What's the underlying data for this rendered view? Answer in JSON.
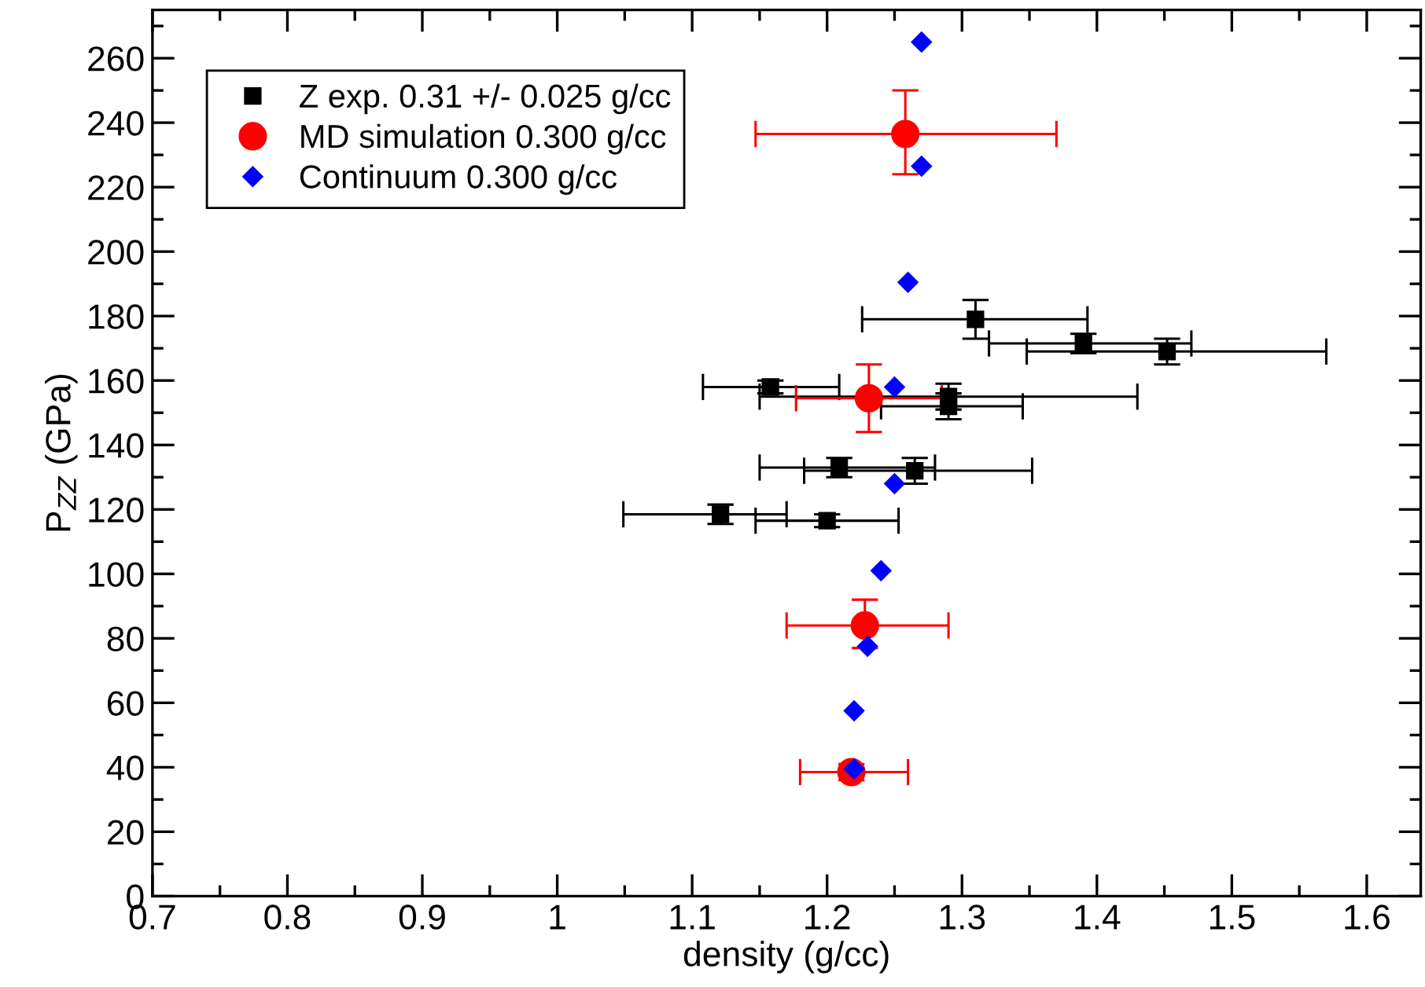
{
  "chart_data": {
    "type": "scatter",
    "xlabel": "density (g/cc)",
    "ylabel": "P$_{ZZ}$ (GPa)",
    "xlim": [
      0.7,
      1.64
    ],
    "ylim": [
      0,
      275
    ],
    "xticks": [
      0.7,
      0.8,
      0.9,
      {
        "value": 1.0,
        "label": "1"
      },
      1.1,
      1.2,
      1.3,
      1.4,
      1.5,
      1.6
    ],
    "yticks": [
      0,
      20,
      40,
      60,
      80,
      100,
      120,
      140,
      160,
      180,
      200,
      220,
      240,
      260
    ],
    "grid": false,
    "legend": "top left",
    "series": [
      {
        "name": "Z exp. 0.31 +/- 0.025 g/cc",
        "color": "#000000",
        "marker": "square",
        "x": [
          1.31,
          1.39,
          1.452,
          1.158,
          1.29,
          1.29,
          1.209,
          1.265,
          1.121,
          1.2
        ],
        "values": [
          179,
          171.5,
          169,
          158,
          155,
          152,
          133,
          132,
          118.5,
          116.5
        ],
        "errors": [
          6,
          3,
          4,
          2,
          4,
          4,
          3,
          4,
          3,
          2
        ],
        "xerrors": [
          [
            1.226,
            1.393
          ],
          [
            1.32,
            1.47
          ],
          [
            1.348,
            1.57
          ],
          [
            1.108,
            1.209
          ],
          [
            1.15,
            1.43
          ],
          [
            1.24,
            1.345
          ],
          [
            1.15,
            1.28
          ],
          [
            1.183,
            1.352
          ],
          [
            1.049,
            1.17
          ],
          [
            1.147,
            1.253
          ]
        ]
      },
      {
        "name": "MD simulation 0.300 g/cc",
        "color": "#ff0000",
        "marker": "circle",
        "x": [
          1.258,
          1.231,
          1.228,
          1.218
        ],
        "values": [
          236.5,
          154.5,
          84,
          38.5
        ],
        "errors": [
          [
            224,
            250
          ],
          [
            144,
            165
          ],
          [
            77,
            92
          ],
          [
            36,
            41
          ]
        ],
        "xerrors": [
          [
            1.147,
            1.37
          ],
          [
            1.177,
            1.285
          ],
          [
            1.17,
            1.29
          ],
          [
            1.18,
            1.26
          ]
        ]
      },
      {
        "name": "Continuum 0.300 g/cc",
        "color": "#0000ff",
        "marker": "diamond",
        "x": [
          1.27,
          1.27,
          1.26,
          1.25,
          1.25,
          1.24,
          1.23,
          1.22,
          1.22
        ],
        "values": [
          265,
          226.5,
          190.5,
          158,
          128,
          101,
          77.5,
          57.5,
          39.5
        ]
      }
    ]
  }
}
